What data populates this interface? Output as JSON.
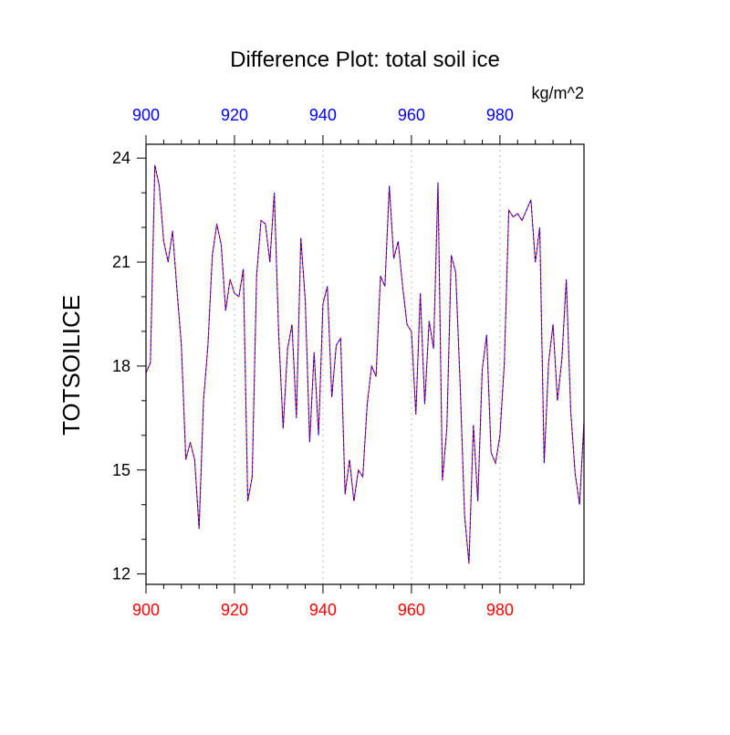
{
  "chart_data": {
    "type": "line",
    "title": "Difference Plot: total soil ice",
    "units": "kg/m^2",
    "ylabel": "TOTSOILICE",
    "xlabel": "",
    "xlim": [
      900,
      999
    ],
    "ylim": [
      11.7,
      24.4
    ],
    "x_ticks": [
      900,
      920,
      940,
      960,
      980
    ],
    "y_ticks": [
      12,
      15,
      18,
      21,
      24
    ],
    "grid": "vertical dotted at major x ticks",
    "colors": {
      "series_a": "#ff0000",
      "series_b": "#0000ff",
      "top_axis_labels": "#0000ff",
      "bottom_axis_labels": "#ff0000"
    },
    "x_start": 900,
    "series": [
      {
        "style": "solid",
        "color": "#ff0000",
        "values": [
          17.8,
          18.1,
          23.8,
          23.2,
          21.6,
          21.0,
          21.9,
          20.2,
          18.6,
          15.3,
          15.8,
          15.3,
          13.3,
          17.0,
          18.6,
          21.2,
          22.1,
          21.5,
          19.6,
          20.5,
          20.1,
          20.0,
          20.8,
          14.1,
          14.8,
          20.6,
          22.2,
          22.1,
          21.0,
          23.0,
          18.9,
          16.2,
          18.5,
          19.2,
          16.5,
          21.7,
          19.9,
          15.8,
          18.4,
          16.0,
          19.8,
          20.3,
          17.1,
          18.6,
          18.8,
          14.3,
          15.3,
          14.1,
          15.0,
          14.8,
          16.9,
          18.0,
          17.7,
          20.6,
          20.3,
          23.2,
          21.1,
          21.6,
          20.3,
          19.2,
          19.0,
          16.6,
          20.1,
          16.9,
          19.3,
          18.5,
          23.3,
          14.7,
          16.2,
          21.2,
          20.7,
          17.5,
          13.7,
          12.3,
          16.3,
          14.1,
          17.9,
          18.9,
          15.5,
          15.2,
          16.0,
          18.1,
          22.5,
          22.3,
          22.4,
          22.2,
          22.5,
          22.8,
          21.0,
          22.0,
          15.2,
          18.1,
          19.2,
          17.0,
          18.2,
          20.5,
          16.7,
          14.9,
          14.0,
          16.4
        ]
      },
      {
        "style": "dashed",
        "color": "#0000ff",
        "values": [
          17.8,
          18.1,
          23.8,
          23.2,
          21.6,
          21.0,
          21.9,
          20.2,
          18.6,
          15.3,
          15.8,
          15.3,
          13.3,
          17.0,
          18.6,
          21.2,
          22.1,
          21.5,
          19.6,
          20.5,
          20.1,
          20.0,
          20.8,
          14.1,
          14.8,
          20.6,
          22.2,
          22.1,
          21.0,
          23.0,
          18.9,
          16.2,
          18.5,
          19.2,
          16.5,
          21.7,
          19.9,
          15.8,
          18.4,
          16.0,
          19.8,
          20.3,
          17.1,
          18.6,
          18.8,
          14.3,
          15.3,
          14.1,
          15.0,
          14.8,
          16.9,
          18.0,
          17.7,
          20.6,
          20.3,
          23.2,
          21.1,
          21.6,
          20.3,
          19.2,
          19.0,
          16.6,
          20.1,
          16.9,
          19.3,
          18.5,
          23.3,
          14.7,
          16.2,
          21.2,
          20.7,
          17.5,
          13.7,
          12.3,
          16.3,
          14.1,
          17.9,
          18.9,
          15.5,
          15.2,
          16.0,
          18.1,
          22.5,
          22.3,
          22.4,
          22.2,
          22.5,
          22.8,
          21.0,
          22.0,
          15.2,
          18.1,
          19.2,
          17.0,
          18.2,
          20.5,
          16.7,
          14.9,
          14.0,
          16.4
        ]
      }
    ]
  }
}
